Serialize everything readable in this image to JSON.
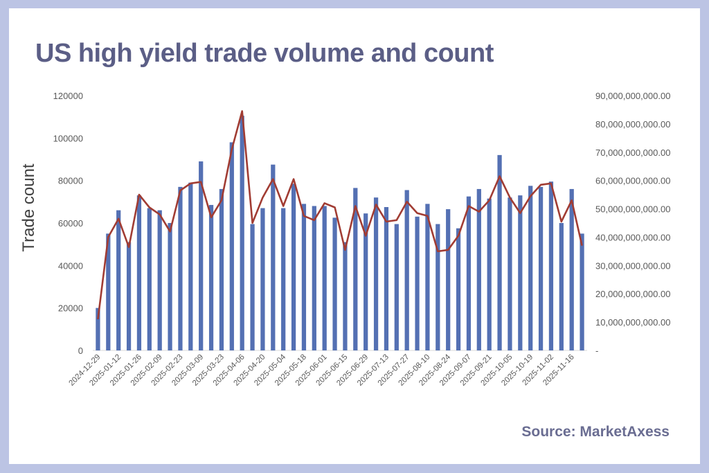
{
  "title": "US high yield trade volume and count",
  "source": "Source: MarketAxess",
  "chart_data": {
    "type": "bar+line",
    "ylabel": "Trade count",
    "ylim": [
      0,
      120000
    ],
    "y_ticks": [
      "0",
      "20000",
      "40000",
      "60000",
      "80000",
      "100000",
      "120000"
    ],
    "y2lim": [
      0,
      90000000000
    ],
    "y2_ticks": [
      "-",
      "10,000,000,000.00",
      "20,000,000,000.00",
      "30,000,000,000.00",
      "40,000,000,000.00",
      "50,000,000,000.00",
      "60,000,000,000.00",
      "70,000,000,000.00",
      "80,000,000,000.00",
      "90,000,000,000.00"
    ],
    "x_tick_labels": [
      "2024-12-29",
      "2025-01-12",
      "2025-01-26",
      "2025-02-09",
      "2025-02-23",
      "2025-03-09",
      "2025-03-23",
      "2025-04-06",
      "2025-04-20",
      "2025-05-04",
      "2025-05-18",
      "2025-06-01",
      "2025-06-15",
      "2025-06-29",
      "2025-07-13",
      "2025-07-27",
      "2025-08-10",
      "2025-08-24",
      "2025-09-07",
      "2025-09-21",
      "2025-10-05",
      "2025-10-19",
      "2025-11-02",
      "2025-11-16"
    ],
    "series": [
      {
        "name": "Trade count",
        "kind": "bar",
        "color": "#5470b3",
        "values": [
          20000,
          55000,
          66000,
          51000,
          73000,
          67000,
          66000,
          60000,
          77000,
          79000,
          89000,
          68500,
          76000,
          98000,
          110500,
          59500,
          67000,
          87500,
          67000,
          78500,
          69000,
          68000,
          68000,
          62500,
          51000,
          76500,
          64500,
          72000,
          67500,
          59500,
          75500,
          63000,
          69000,
          59500,
          66500,
          57500,
          72500,
          76000,
          71500,
          92000,
          72000,
          73000,
          77500,
          77000,
          79500,
          60000,
          76000,
          55000
        ]
      },
      {
        "name": "Trade volume",
        "kind": "line",
        "color": "#a13c33",
        "values": [
          11000000000,
          40000000000,
          46500000000,
          36500000000,
          55000000000,
          50500000000,
          48000000000,
          42000000000,
          56500000000,
          59000000000,
          59500000000,
          47000000000,
          53000000000,
          71000000000,
          84500000000,
          45000000000,
          54000000000,
          60500000000,
          51000000000,
          60500000000,
          47500000000,
          46000000000,
          52000000000,
          50500000000,
          35500000000,
          51000000000,
          40500000000,
          51500000000,
          45500000000,
          46000000000,
          52500000000,
          48500000000,
          47500000000,
          35000000000,
          35500000000,
          40500000000,
          51000000000,
          49000000000,
          53000000000,
          61500000000,
          54000000000,
          48500000000,
          54500000000,
          58500000000,
          59000000000,
          45500000000,
          53000000000,
          37000000000
        ]
      }
    ]
  }
}
